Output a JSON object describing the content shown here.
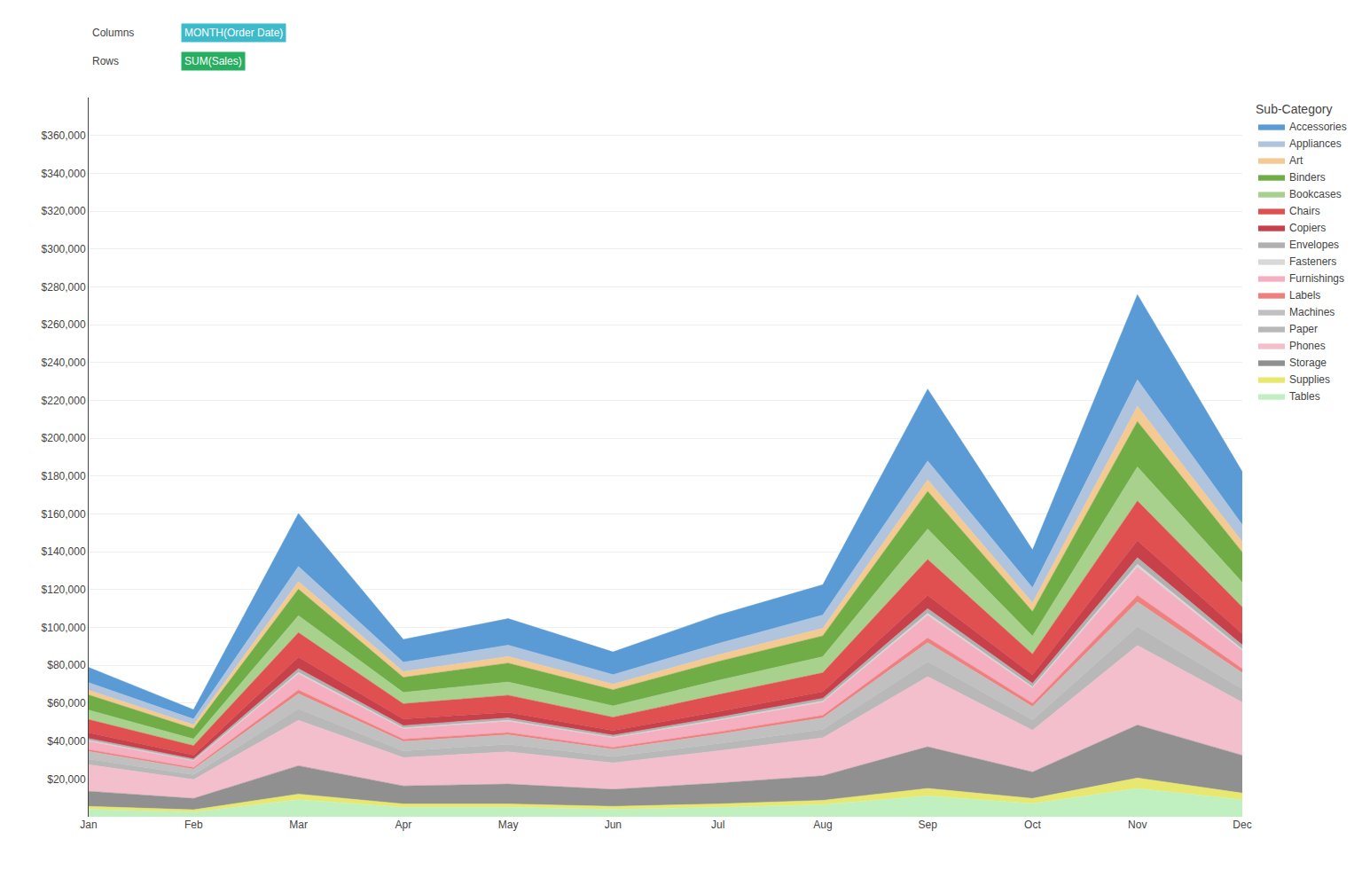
{
  "chart_data": {
    "type": "area",
    "stacked": true,
    "legend_title": "Sub-Category",
    "annotations": [
      "Columns",
      "MONTH(Order Date)",
      "Rows",
      "SUM(Sales)"
    ],
    "categories": [
      "Jan",
      "Feb",
      "Mar",
      "Apr",
      "May",
      "Jun",
      "Jul",
      "Aug",
      "Sep",
      "Oct",
      "Nov",
      "Dec"
    ],
    "series": [
      {
        "name": "Tables",
        "color": "#C0F0C0",
        "values": [
          4000,
          2500,
          9000,
          5000,
          5000,
          4000,
          5000,
          6500,
          11000,
          7000,
          15000,
          9000
        ]
      },
      {
        "name": "Supplies",
        "color": "#E8E870",
        "values": [
          1500,
          1200,
          3000,
          1800,
          1800,
          1500,
          1800,
          2200,
          4000,
          2700,
          5500,
          3500
        ]
      },
      {
        "name": "Storage",
        "color": "#909090",
        "values": [
          8000,
          6000,
          15000,
          9500,
          10500,
          9000,
          11000,
          13000,
          22000,
          14000,
          28000,
          20000
        ]
      },
      {
        "name": "Phones",
        "color": "#F4BFCC",
        "values": [
          14000,
          10000,
          24000,
          15000,
          17000,
          14000,
          17000,
          20000,
          37000,
          22000,
          42000,
          28000
        ]
      },
      {
        "name": "Paper",
        "color": "#B8B8B8",
        "values": [
          3000,
          2500,
          6000,
          3500,
          4000,
          3200,
          3800,
          4500,
          8000,
          5500,
          10000,
          7000
        ]
      },
      {
        "name": "Machines",
        "color": "#C0C0C0",
        "values": [
          4000,
          3000,
          8000,
          5000,
          5000,
          4000,
          5000,
          6000,
          10000,
          7000,
          13000,
          8500
        ]
      },
      {
        "name": "Labels",
        "color": "#F08080",
        "values": [
          1000,
          800,
          2000,
          1200,
          1200,
          1000,
          1200,
          1400,
          2500,
          1800,
          3500,
          2200
        ]
      },
      {
        "name": "Furnishings",
        "color": "#F4AFC0",
        "values": [
          4500,
          3500,
          8500,
          5500,
          6000,
          5000,
          6000,
          7000,
          12000,
          8000,
          15000,
          9500
        ]
      },
      {
        "name": "Fasteners",
        "color": "#D8D8D8",
        "values": [
          400,
          300,
          800,
          500,
          500,
          400,
          500,
          600,
          1000,
          700,
          1400,
          900
        ]
      },
      {
        "name": "Envelopes",
        "color": "#B0B0B0",
        "values": [
          1000,
          800,
          2000,
          1200,
          1200,
          1000,
          1200,
          1400,
          2500,
          1800,
          3500,
          2200
        ]
      },
      {
        "name": "Copiers",
        "color": "#C8404A",
        "values": [
          3000,
          2000,
          6000,
          3500,
          3000,
          2500,
          3000,
          3500,
          7000,
          4500,
          9000,
          6000
        ]
      },
      {
        "name": "Chairs",
        "color": "#E05050",
        "values": [
          7000,
          5000,
          13000,
          8000,
          9000,
          7000,
          9000,
          10000,
          19000,
          11000,
          21000,
          14000
        ]
      },
      {
        "name": "Bookcases",
        "color": "#A9D18E",
        "values": [
          5000,
          3500,
          9000,
          6000,
          7000,
          6000,
          7500,
          8500,
          16000,
          9500,
          18000,
          13000
        ]
      },
      {
        "name": "Binders",
        "color": "#70AD47",
        "values": [
          8000,
          5500,
          14000,
          8000,
          10000,
          8500,
          10000,
          11000,
          20000,
          13000,
          24000,
          16000
        ]
      },
      {
        "name": "Art",
        "color": "#F5C992",
        "values": [
          2500,
          2000,
          4000,
          3000,
          3500,
          3000,
          3500,
          4000,
          6000,
          4500,
          8000,
          5500
        ]
      },
      {
        "name": "Appliances",
        "color": "#B0C4DE",
        "values": [
          4000,
          3000,
          8000,
          5000,
          6000,
          5000,
          6000,
          7000,
          10000,
          8000,
          14000,
          9000
        ]
      },
      {
        "name": "Accessories",
        "color": "#5B9BD5",
        "values": [
          8000,
          5000,
          28000,
          12000,
          14000,
          12000,
          15000,
          16000,
          38000,
          20000,
          45000,
          28000
        ]
      }
    ],
    "ylim": [
      0,
      380000
    ],
    "yticks": [
      {
        "value": 20000,
        "label": "$20,000"
      },
      {
        "value": 40000,
        "label": "$40,000"
      },
      {
        "value": 60000,
        "label": "$60,000"
      },
      {
        "value": 80000,
        "label": "$80,000"
      },
      {
        "value": 100000,
        "label": "$100,000"
      },
      {
        "value": 120000,
        "label": "$120,000"
      },
      {
        "value": 140000,
        "label": "$140,000"
      },
      {
        "value": 160000,
        "label": "$160,000"
      },
      {
        "value": 180000,
        "label": "$180,000"
      },
      {
        "value": 200000,
        "label": "$200,000"
      },
      {
        "value": 220000,
        "label": "$220,000"
      },
      {
        "value": 240000,
        "label": "$240,000"
      },
      {
        "value": 260000,
        "label": "$260,000"
      },
      {
        "value": 280000,
        "label": "$280,000"
      },
      {
        "value": 300000,
        "label": "$300,000"
      },
      {
        "value": 320000,
        "label": "$320,000"
      },
      {
        "value": 340000,
        "label": "$340,000"
      },
      {
        "value": 360000,
        "label": "$360,000"
      }
    ],
    "grid": true
  }
}
